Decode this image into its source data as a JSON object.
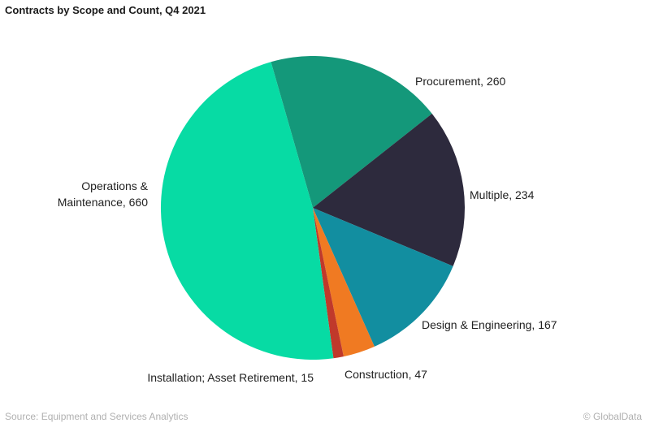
{
  "title": "Contracts by Scope and Count, Q4 2021",
  "source": "Source: Equipment and Services Analytics",
  "copyright": "© GlobalData",
  "chart_data": {
    "type": "pie",
    "title": "Contracts by Scope and Count, Q4 2021",
    "start_angle_deg": -16,
    "direction": "clockwise",
    "slices": [
      {
        "name": "Procurement",
        "value": 260,
        "color": "#14987a",
        "label": "Procurement, 260"
      },
      {
        "name": "Multiple",
        "value": 234,
        "color": "#2d2a3d",
        "label": "Multiple, 234"
      },
      {
        "name": "Design & Engineering",
        "value": 167,
        "color": "#128ea0",
        "label": "Design & Engineering, 167"
      },
      {
        "name": "Construction",
        "value": 47,
        "color": "#f07a22",
        "label": "Construction, 47"
      },
      {
        "name": "Installation; Asset Retirement",
        "value": 15,
        "color": "#c0392b",
        "label": "Installation; Asset Retirement, 15"
      },
      {
        "name": "Operations & Maintenance",
        "value": 660,
        "color": "#07dba4",
        "label": [
          "Operations &",
          "Maintenance, 660"
        ]
      }
    ]
  }
}
